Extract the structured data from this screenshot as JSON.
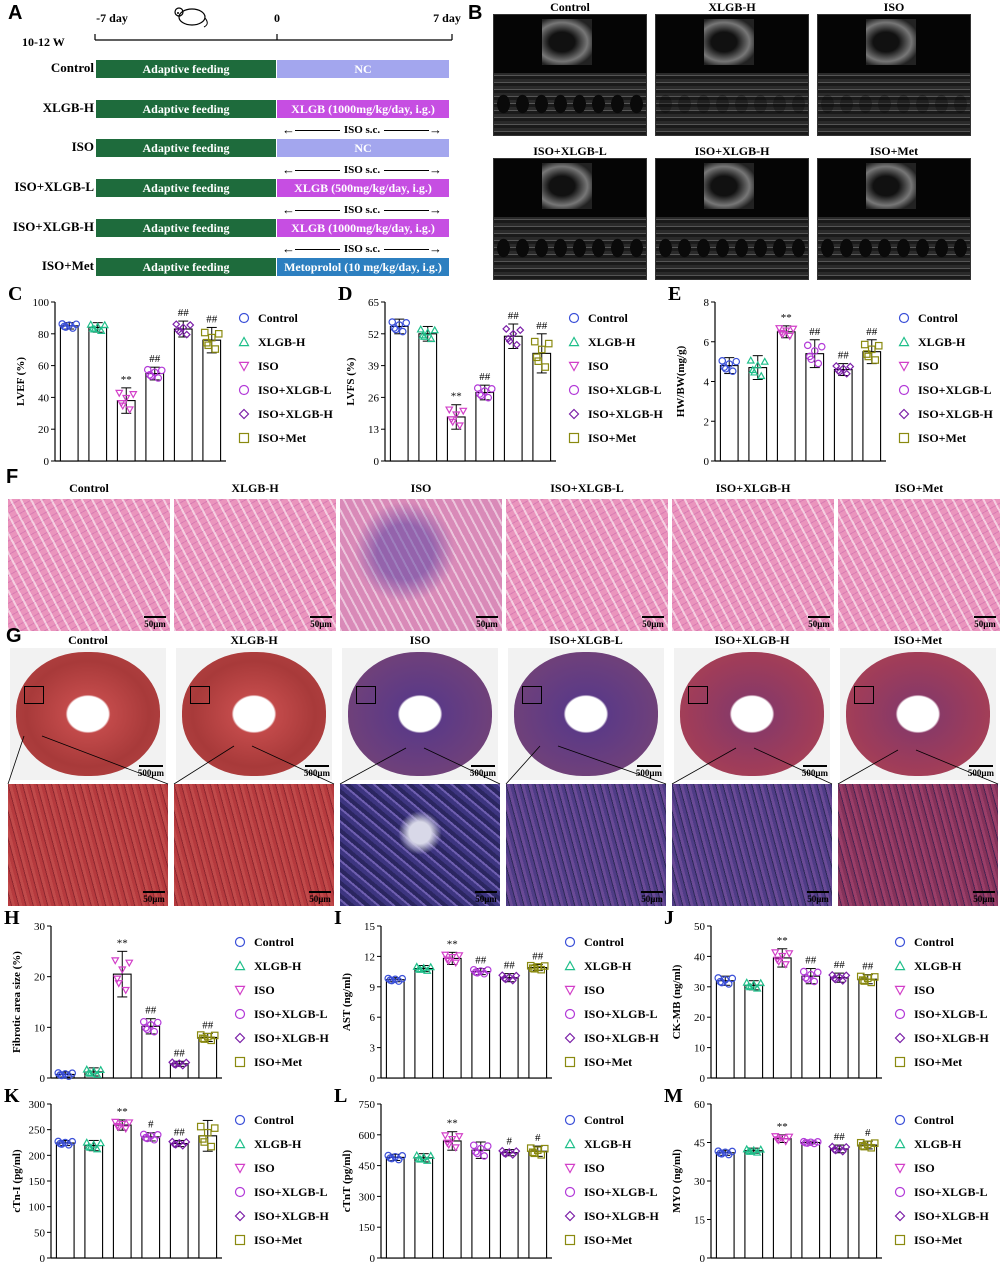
{
  "panel_letters": [
    "A",
    "B",
    "C",
    "D",
    "E",
    "F",
    "G",
    "H",
    "I",
    "J",
    "K",
    "L",
    "M"
  ],
  "panel_a": {
    "age": "10-12 W",
    "day_start": "-7 day",
    "day_zero": "0",
    "day_end": "7 day",
    "iso_sc": "ISO s.c.",
    "rows": [
      {
        "label": "Control",
        "left": "Adaptive feeding",
        "right": "NC",
        "style": "nc",
        "iso": false
      },
      {
        "label": "XLGB-H",
        "left": "Adaptive feeding",
        "right": "XLGB (1000mg/kg/day, i.g.)",
        "style": "xlgb",
        "iso": false
      },
      {
        "label": "ISO",
        "left": "Adaptive feeding",
        "right": "NC",
        "style": "nc",
        "iso": true
      },
      {
        "label": "ISO+XLGB-L",
        "left": "Adaptive feeding",
        "right": "XLGB (500mg/kg/day, i.g.)",
        "style": "xlgb",
        "iso": true
      },
      {
        "label": "ISO+XLGB-H",
        "left": "Adaptive feeding",
        "right": "XLGB (1000mg/kg/day, i.g.)",
        "style": "xlgb",
        "iso": true
      },
      {
        "label": "ISO+Met",
        "left": "Adaptive feeding",
        "right": "Metoprolol (10 mg/kg/day, i.g.)",
        "style": "met",
        "iso": true
      }
    ]
  },
  "groups": [
    "Control",
    "XLGB-H",
    "ISO",
    "ISO+XLGB-L",
    "ISO+XLGB-H",
    "ISO+Met"
  ],
  "scale_small": "50μm",
  "scale_large": "500μm",
  "colors": {
    "Control": "#3a4fd8",
    "XLGB-H": "#1fbf8a",
    "ISO": "#d23fc8",
    "ISO+XLGB-L": "#b23ad8",
    "ISO+XLGB-H": "#7b1fa8",
    "ISO+Met": "#8a8a10"
  },
  "markers": [
    "circle",
    "triangle-up",
    "triangle-down",
    "circle",
    "diamond",
    "square"
  ],
  "chart_data": [
    {
      "panel": "C",
      "type": "bar",
      "ylabel": "LVEF (%)",
      "ylim": [
        0,
        100
      ],
      "ticks": [
        0,
        20,
        40,
        60,
        80,
        100
      ],
      "values": [
        85,
        84,
        38,
        55,
        83,
        76
      ],
      "errors": [
        2,
        3,
        8,
        4,
        5,
        8
      ],
      "sig": [
        "",
        "",
        "**",
        "##",
        "##",
        "##"
      ]
    },
    {
      "panel": "D",
      "type": "bar",
      "ylabel": "LVFS (%)",
      "ylim": [
        0,
        65
      ],
      "ticks": [
        0,
        13,
        26,
        39,
        52,
        65
      ],
      "values": [
        55,
        52,
        18,
        28,
        51,
        44
      ],
      "errors": [
        3,
        3,
        5,
        3,
        5,
        8
      ],
      "sig": [
        "",
        "",
        "**",
        "##",
        "##",
        "##"
      ]
    },
    {
      "panel": "E",
      "type": "bar",
      "ylabel": "HW/BW(mg/g)",
      "ylim": [
        0,
        8
      ],
      "ticks": [
        0,
        2,
        4,
        6,
        8
      ],
      "values": [
        4.8,
        4.7,
        6.5,
        5.4,
        4.6,
        5.5
      ],
      "errors": [
        0.4,
        0.6,
        0.3,
        0.7,
        0.3,
        0.6
      ],
      "sig": [
        "",
        "",
        "**",
        "##",
        "##",
        "##"
      ]
    },
    {
      "panel": "H",
      "type": "bar",
      "ylabel": "Fibrotic area size (%)",
      "ylim": [
        0,
        30
      ],
      "ticks": [
        0,
        10,
        20,
        30
      ],
      "values": [
        0.7,
        1.2,
        20.5,
        10.2,
        2.8,
        8.0
      ],
      "errors": [
        0.5,
        0.8,
        4.5,
        1.5,
        0.5,
        0.8
      ],
      "sig": [
        "",
        "",
        "**",
        "##",
        "##",
        "##"
      ]
    },
    {
      "panel": "I",
      "type": "bar",
      "ylabel": "AST (ng/ml)",
      "ylim": [
        0,
        15
      ],
      "ticks": [
        0,
        3,
        6,
        9,
        12,
        15
      ],
      "values": [
        9.7,
        10.8,
        11.8,
        10.5,
        9.9,
        10.9
      ],
      "errors": [
        0.2,
        0.3,
        0.6,
        0.3,
        0.4,
        0.3
      ],
      "sig": [
        "",
        "",
        "**",
        "##",
        "##",
        "##"
      ]
    },
    {
      "panel": "J",
      "type": "bar",
      "ylabel": "CK-MB (ng/ml)",
      "ylim": [
        0,
        50
      ],
      "ticks": [
        0,
        10,
        20,
        30,
        40,
        50
      ],
      "values": [
        32,
        30.5,
        39.5,
        33.5,
        33,
        32.5
      ],
      "errors": [
        1.5,
        1.5,
        3,
        2.5,
        1.5,
        1.5
      ],
      "sig": [
        "",
        "",
        "**",
        "##",
        "##",
        "##"
      ]
    },
    {
      "panel": "K",
      "type": "bar",
      "ylabel": "cTn-I (pg/ml)",
      "ylim": [
        0,
        300
      ],
      "ticks": [
        0,
        50,
        100,
        150,
        200,
        250,
        300
      ],
      "values": [
        224,
        219,
        259,
        236,
        223,
        238
      ],
      "errors": [
        5,
        10,
        10,
        8,
        6,
        30
      ],
      "sig": [
        "",
        "",
        "**",
        "#",
        "##",
        ""
      ]
    },
    {
      "panel": "L",
      "type": "bar",
      "ylabel": "cTnT (pg/ml)",
      "ylim": [
        0,
        750
      ],
      "ticks": [
        0,
        150,
        300,
        450,
        600,
        750
      ],
      "values": [
        490,
        488,
        570,
        525,
        513,
        520
      ],
      "errors": [
        15,
        20,
        45,
        40,
        15,
        25
      ],
      "sig": [
        "",
        "",
        "**",
        "",
        "#",
        "#"
      ]
    },
    {
      "panel": "M",
      "type": "bar",
      "ylabel": "MYO (ng/ml)",
      "ylim": [
        0,
        60
      ],
      "ticks": [
        0,
        15,
        30,
        45,
        60
      ],
      "values": [
        41,
        41.8,
        46.5,
        45,
        42.5,
        44
      ],
      "errors": [
        1,
        1,
        1.5,
        0.5,
        1.5,
        1.5
      ],
      "sig": [
        "",
        "",
        "**",
        "",
        "##",
        "#"
      ]
    }
  ]
}
